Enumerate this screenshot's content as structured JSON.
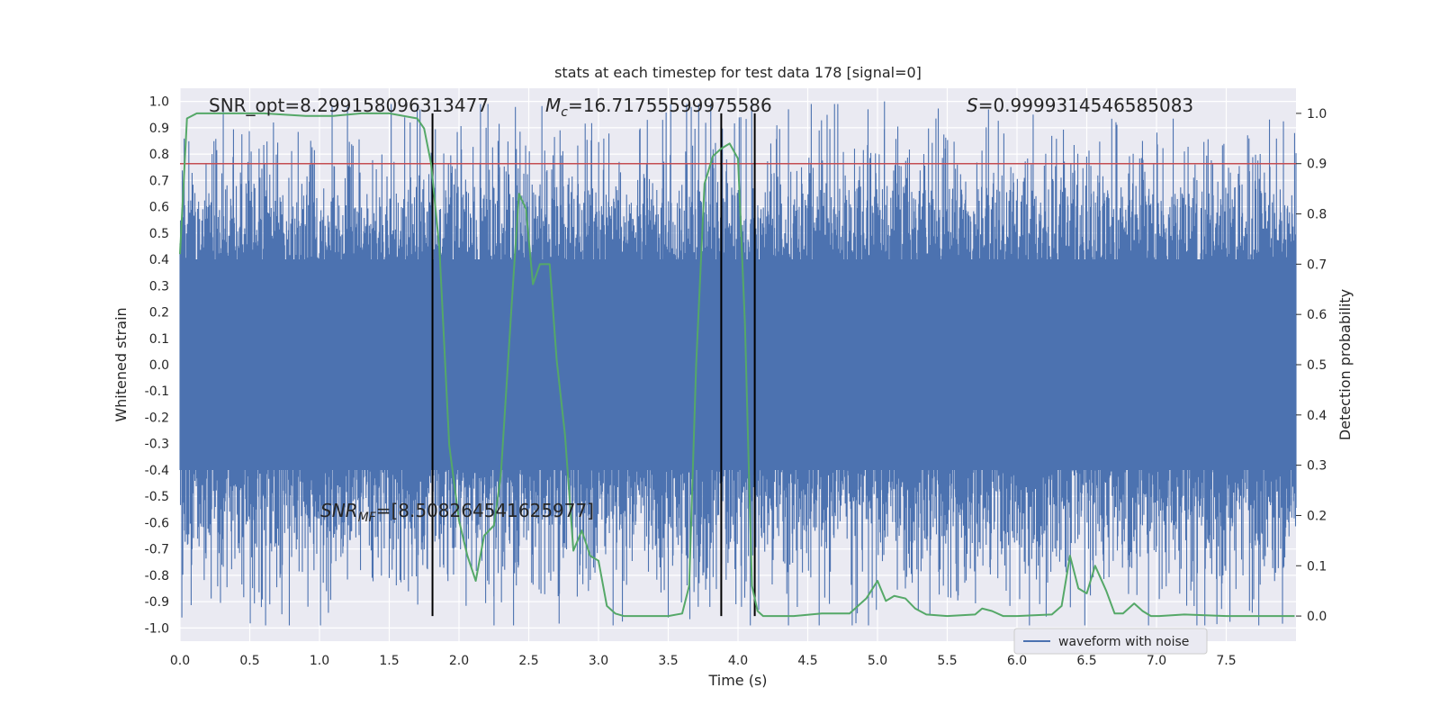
{
  "chart_data": {
    "type": "line",
    "title": "stats at each timestep for test data 178 [signal=0]",
    "xlabel": "Time (s)",
    "ylabel": "Whitened strain",
    "y2label": "Detection probability",
    "xlim": [
      0.0,
      8.0
    ],
    "ylim": [
      -1.05,
      1.05
    ],
    "y2lim": [
      -0.05,
      1.05
    ],
    "xticks": [
      "0.0",
      "0.5",
      "1.0",
      "1.5",
      "2.0",
      "2.5",
      "3.0",
      "3.5",
      "4.0",
      "4.5",
      "5.0",
      "5.5",
      "6.0",
      "6.5",
      "7.0",
      "7.5"
    ],
    "yticks": [
      "1.0",
      "0.9",
      "0.8",
      "0.7",
      "0.6",
      "0.5",
      "0.4",
      "0.3",
      "0.2",
      "0.1",
      "0.0",
      "-0.1",
      "-0.2",
      "-0.3",
      "-0.4",
      "-0.5",
      "-0.6",
      "-0.7",
      "-0.8",
      "-0.9",
      "-1.0"
    ],
    "y2ticks": [
      "1.0",
      "0.9",
      "0.8",
      "0.7",
      "0.6",
      "0.5",
      "0.4",
      "0.3",
      "0.2",
      "0.1",
      "0.0"
    ],
    "grid": true,
    "legend_location": "lower right",
    "annotations": {
      "snr_opt": "SNR_opt=8.299158096313477",
      "mc_symbol": "M",
      "mc_sub": "c",
      "mc_value": "=16.71755599975586",
      "s_symbol": "S",
      "s_value": "=0.9999314546585083",
      "snr_mf_symbol": "SNR",
      "snr_mf_sub": "MF",
      "snr_mf_value": "=[8.508264541625977]"
    },
    "threshold": 0.9,
    "vertical_lines_x": [
      1.81,
      3.88,
      4.12
    ],
    "series": [
      {
        "name": "waveform with noise",
        "kind": "noise",
        "typical_envelope": [
          -0.4,
          0.4
        ],
        "peaks_x": [
          0.67,
          1.65,
          2.28,
          3.35,
          3.46,
          4.02,
          5.05,
          7.2,
          7.99
        ],
        "peaks_y": [
          0.92,
          0.92,
          0.85,
          0.93,
          0.93,
          0.94,
          1.0,
          0.81,
          0.88
        ],
        "troughs_x": [
          0.3,
          1.05,
          1.5,
          2.25,
          2.72,
          3.5,
          4.35,
          5.2,
          7.02
        ],
        "troughs_y": [
          -0.76,
          -0.86,
          -0.81,
          -0.88,
          -0.87,
          -0.96,
          -0.87,
          -0.85,
          -0.89
        ]
      },
      {
        "name": "",
        "kind": "probability",
        "x": [
          0.0,
          0.05,
          0.12,
          0.3,
          0.6,
          0.9,
          1.1,
          1.3,
          1.5,
          1.7,
          1.75,
          1.8,
          1.86,
          1.93,
          2.0,
          2.06,
          2.12,
          2.18,
          2.25,
          2.3,
          2.38,
          2.43,
          2.48,
          2.53,
          2.58,
          2.65,
          2.7,
          2.76,
          2.82,
          2.88,
          2.94,
          3.0,
          3.06,
          3.12,
          3.18,
          3.25,
          3.35,
          3.5,
          3.6,
          3.65,
          3.7,
          3.76,
          3.82,
          3.88,
          3.94,
          4.0,
          4.05,
          4.1,
          4.14,
          4.18,
          4.24,
          4.3,
          4.4,
          4.6,
          4.8,
          4.92,
          5.0,
          5.06,
          5.12,
          5.2,
          5.27,
          5.35,
          5.5,
          5.7,
          5.75,
          5.82,
          5.9,
          6.0,
          6.25,
          6.32,
          6.38,
          6.44,
          6.5,
          6.56,
          6.64,
          6.7,
          6.76,
          6.84,
          6.9,
          6.96,
          7.02,
          7.2,
          7.5,
          7.8,
          7.99
        ],
        "y": [
          0.72,
          0.99,
          1.0,
          1.0,
          1.0,
          0.995,
          0.995,
          1.0,
          1.0,
          0.99,
          0.97,
          0.9,
          0.73,
          0.34,
          0.19,
          0.12,
          0.07,
          0.16,
          0.18,
          0.28,
          0.63,
          0.84,
          0.81,
          0.66,
          0.7,
          0.7,
          0.51,
          0.36,
          0.13,
          0.17,
          0.12,
          0.11,
          0.02,
          0.005,
          0.0,
          0.0,
          0.0,
          0.0,
          0.005,
          0.06,
          0.5,
          0.86,
          0.915,
          0.93,
          0.94,
          0.91,
          0.58,
          0.06,
          0.01,
          0.0,
          0.0,
          0.0,
          0.0,
          0.005,
          0.005,
          0.035,
          0.07,
          0.03,
          0.04,
          0.035,
          0.015,
          0.003,
          0.0,
          0.003,
          0.015,
          0.01,
          0.0,
          0.0,
          0.003,
          0.02,
          0.12,
          0.055,
          0.045,
          0.1,
          0.05,
          0.005,
          0.005,
          0.025,
          0.01,
          0.0,
          0.0,
          0.003,
          0.0,
          0.0,
          0.0
        ],
        "color": "#55a868"
      }
    ],
    "colors": {
      "noise": "#4c72b0",
      "probability": "#55a868",
      "threshold": "#c44e52",
      "vline": "#000000",
      "plot_bg": "#eaeaf2",
      "grid": "#ffffff"
    }
  }
}
